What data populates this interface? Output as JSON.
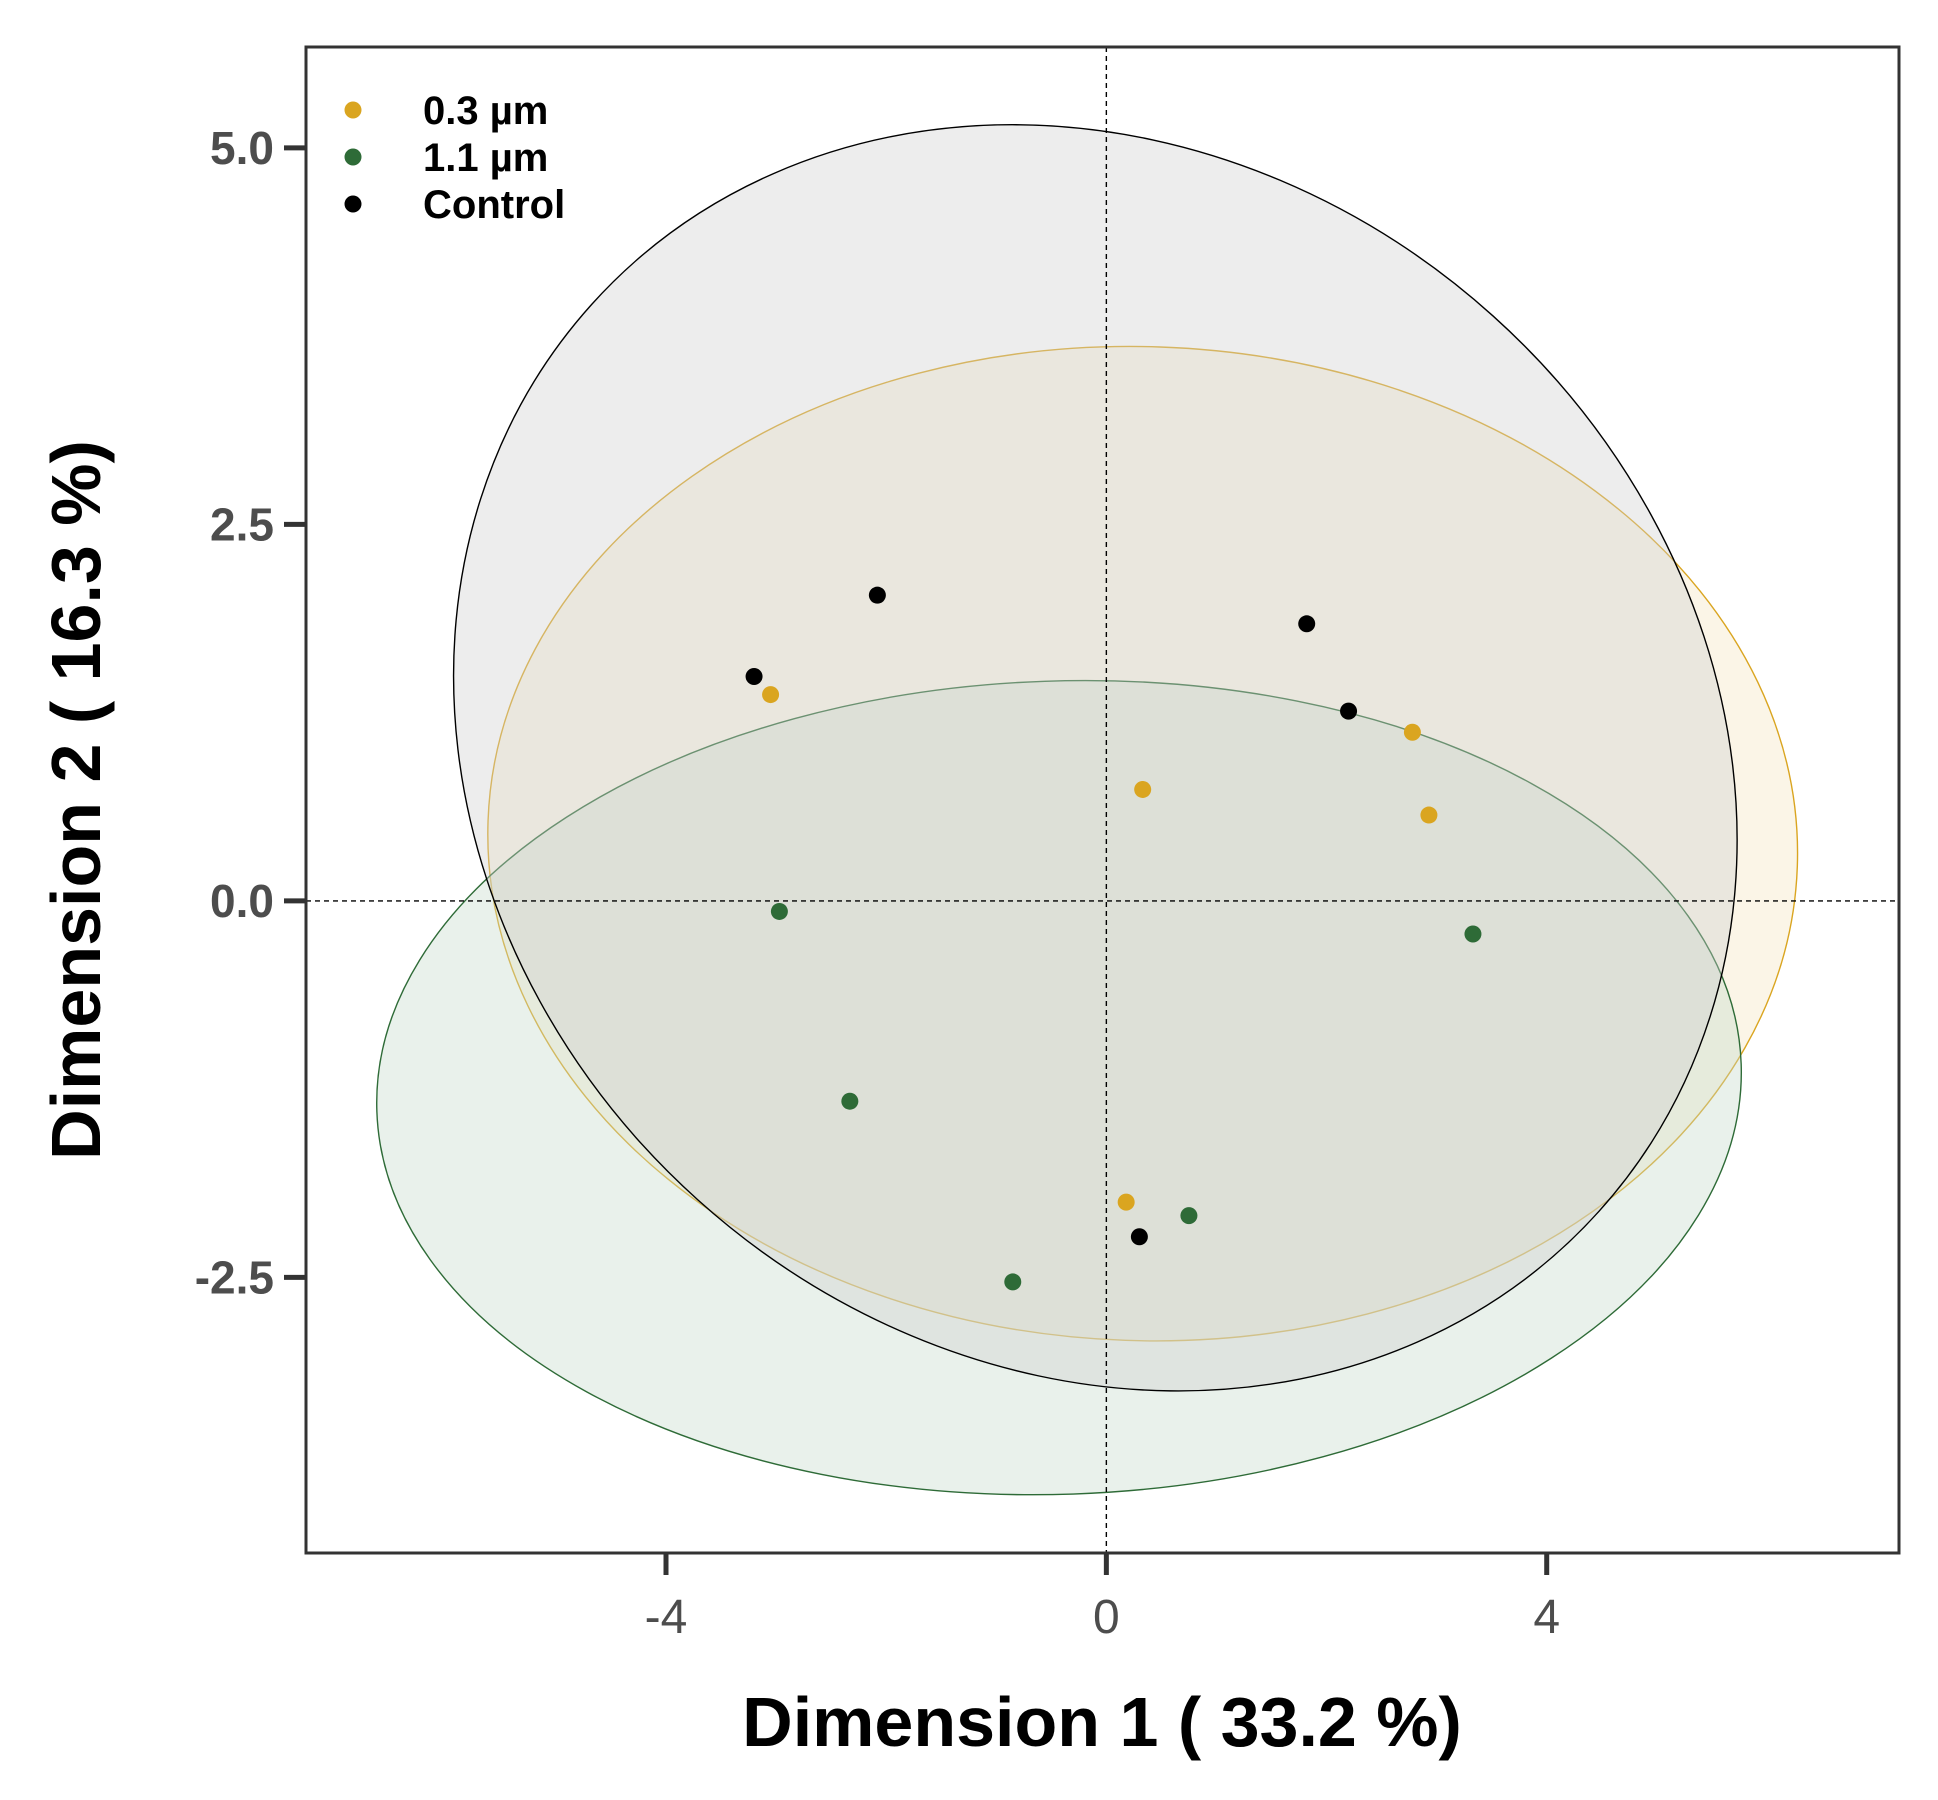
{
  "chart_data": {
    "type": "scatter",
    "title": "",
    "xlabel": "Dimension 1 ( 33.2 %)",
    "ylabel": "Dimension 2 ( 16.3 %)",
    "xlim": [
      -7.27,
      7.2
    ],
    "ylim": [
      -4.33,
      5.67
    ],
    "x_ticks": [
      {
        "value": -4,
        "label": "-4"
      },
      {
        "value": 0,
        "label": "0"
      },
      {
        "value": 4,
        "label": "4"
      }
    ],
    "y_ticks": [
      {
        "value": 5.0,
        "label": "5.0"
      },
      {
        "value": 2.5,
        "label": "2.5"
      },
      {
        "value": 0.0,
        "label": "0.0"
      },
      {
        "value": -2.5,
        "label": "-2.5"
      }
    ],
    "reference_lines": {
      "x": 0,
      "y": 0,
      "style": "dashed"
    },
    "grid": false,
    "legend_position": "top-left",
    "series": [
      {
        "name": "0.3 µm",
        "color": "#DAA520",
        "fill": "#F5E6C0",
        "points": [
          {
            "x": -3.05,
            "y": 1.37
          },
          {
            "x": 0.33,
            "y": 0.74
          },
          {
            "x": 2.78,
            "y": 1.12
          },
          {
            "x": 2.93,
            "y": 0.57
          },
          {
            "x": 0.18,
            "y": -2.0
          }
        ],
        "ellipse": {
          "cx": 0.33,
          "cy": 0.38,
          "rx": 5.95,
          "ry": 3.3,
          "angle_deg": 2
        }
      },
      {
        "name": "1.1 µm",
        "color": "#2E6B37",
        "fill": "#C6D9CA",
        "points": [
          {
            "x": -2.97,
            "y": -0.07
          },
          {
            "x": -2.33,
            "y": -1.33
          },
          {
            "x": 3.33,
            "y": -0.22
          },
          {
            "x": 0.75,
            "y": -2.09
          },
          {
            "x": -0.85,
            "y": -2.53
          }
        ],
        "ellipse": {
          "cx": -0.43,
          "cy": -1.24,
          "rx": 6.2,
          "ry": 2.7,
          "angle_deg": -2
        }
      },
      {
        "name": "Control",
        "color": "#000000",
        "fill": "#D0D0D0",
        "points": [
          {
            "x": -3.2,
            "y": 1.49
          },
          {
            "x": -2.08,
            "y": 2.03
          },
          {
            "x": 1.82,
            "y": 1.84
          },
          {
            "x": 2.2,
            "y": 1.26
          },
          {
            "x": 0.3,
            "y": -2.23
          }
        ],
        "ellipse": {
          "cx": -0.1,
          "cy": 0.95,
          "rx": 5.4,
          "ry": 4.5,
          "angle_deg": -48
        }
      }
    ]
  }
}
